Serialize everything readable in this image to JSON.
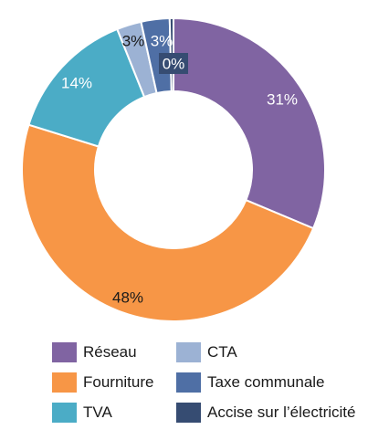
{
  "chart_data": {
    "type": "pie",
    "donut": true,
    "title": "",
    "legend_position": "bottom",
    "slices": [
      {
        "name": "Réseau",
        "value": 31,
        "label": "31%",
        "color": "#8064a2"
      },
      {
        "name": "Fourniture",
        "value": 48,
        "label": "48%",
        "color": "#f79646"
      },
      {
        "name": "TVA",
        "value": 14,
        "label": "14%",
        "color": "#4bacc6"
      },
      {
        "name": "CTA",
        "value": 2.6,
        "label": "3%",
        "color": "#9cb2d4"
      },
      {
        "name": "Taxe communale",
        "value": 3,
        "label": "3%",
        "color": "#4f6fa5"
      },
      {
        "name": "Accise sur l’électricité",
        "value": 0.4,
        "label": "0%",
        "color": "#364c72"
      }
    ]
  }
}
